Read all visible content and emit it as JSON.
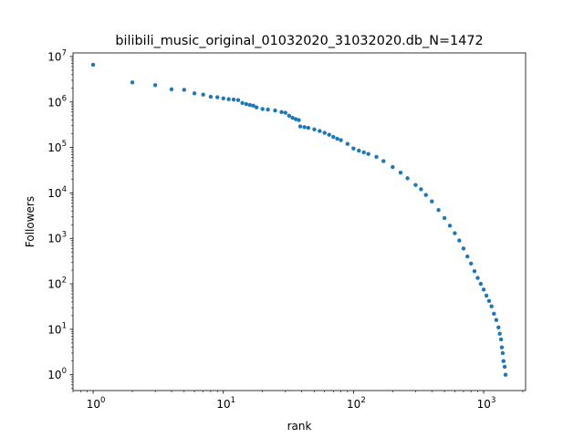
{
  "chart_data": {
    "type": "scatter",
    "title": "bilibili_music_original_01032020_31032020.db_N=1472",
    "xlabel": "rank",
    "ylabel": "Followers",
    "xscale": "log",
    "yscale": "log",
    "xlim": [
      0.7,
      2100
    ],
    "ylim": [
      0.45,
      12000000
    ],
    "grid": false,
    "marker_color": "#1f77b4",
    "x_ticks": [
      {
        "base": "10",
        "exp": "0",
        "value": 1
      },
      {
        "base": "10",
        "exp": "1",
        "value": 10
      },
      {
        "base": "10",
        "exp": "2",
        "value": 100
      },
      {
        "base": "10",
        "exp": "3",
        "value": 1000
      }
    ],
    "y_ticks": [
      {
        "base": "10",
        "exp": "0",
        "value": 1
      },
      {
        "base": "10",
        "exp": "1",
        "value": 10
      },
      {
        "base": "10",
        "exp": "2",
        "value": 100
      },
      {
        "base": "10",
        "exp": "3",
        "value": 1000
      },
      {
        "base": "10",
        "exp": "4",
        "value": 10000
      },
      {
        "base": "10",
        "exp": "5",
        "value": 100000
      },
      {
        "base": "10",
        "exp": "6",
        "value": 1000000
      },
      {
        "base": "10",
        "exp": "7",
        "value": 10000000
      }
    ],
    "series": [
      {
        "points": [
          [
            1,
            6600000
          ],
          [
            2,
            2700000
          ],
          [
            3,
            2350000
          ],
          [
            4,
            1900000
          ],
          [
            5,
            1850000
          ],
          [
            6,
            1550000
          ],
          [
            7,
            1450000
          ],
          [
            8,
            1300000
          ],
          [
            9,
            1270000
          ],
          [
            10,
            1200000
          ],
          [
            11,
            1150000
          ],
          [
            12,
            1130000
          ],
          [
            13,
            1100000
          ],
          [
            14,
            950000
          ],
          [
            15,
            900000
          ],
          [
            16,
            860000
          ],
          [
            17,
            830000
          ],
          [
            18,
            760000
          ],
          [
            20,
            700000
          ],
          [
            22,
            680000
          ],
          [
            25,
            650000
          ],
          [
            28,
            600000
          ],
          [
            30,
            580000
          ],
          [
            32,
            500000
          ],
          [
            34,
            450000
          ],
          [
            36,
            420000
          ],
          [
            38,
            400000
          ],
          [
            39,
            290000
          ],
          [
            42,
            280000
          ],
          [
            45,
            270000
          ],
          [
            50,
            250000
          ],
          [
            55,
            230000
          ],
          [
            60,
            210000
          ],
          [
            65,
            190000
          ],
          [
            70,
            170000
          ],
          [
            75,
            155000
          ],
          [
            80,
            145000
          ],
          [
            90,
            120000
          ],
          [
            100,
            95000
          ],
          [
            110,
            85000
          ],
          [
            120,
            78000
          ],
          [
            130,
            72000
          ],
          [
            150,
            62000
          ],
          [
            170,
            50000
          ],
          [
            200,
            37000
          ],
          [
            230,
            28000
          ],
          [
            260,
            21000
          ],
          [
            300,
            15000
          ],
          [
            330,
            12000
          ],
          [
            360,
            9000
          ],
          [
            400,
            6500
          ],
          [
            450,
            4200
          ],
          [
            500,
            2800
          ],
          [
            550,
            1900
          ],
          [
            600,
            1300
          ],
          [
            650,
            900
          ],
          [
            700,
            600
          ],
          [
            750,
            400
          ],
          [
            800,
            280
          ],
          [
            850,
            190
          ],
          [
            900,
            135
          ],
          [
            950,
            100
          ],
          [
            1000,
            75
          ],
          [
            1050,
            55
          ],
          [
            1100,
            42
          ],
          [
            1150,
            32
          ],
          [
            1200,
            22
          ],
          [
            1250,
            16
          ],
          [
            1300,
            11
          ],
          [
            1330,
            8
          ],
          [
            1360,
            6
          ],
          [
            1380,
            4
          ],
          [
            1400,
            3
          ],
          [
            1420,
            2
          ],
          [
            1450,
            1.5
          ],
          [
            1472,
            1
          ]
        ]
      }
    ]
  }
}
